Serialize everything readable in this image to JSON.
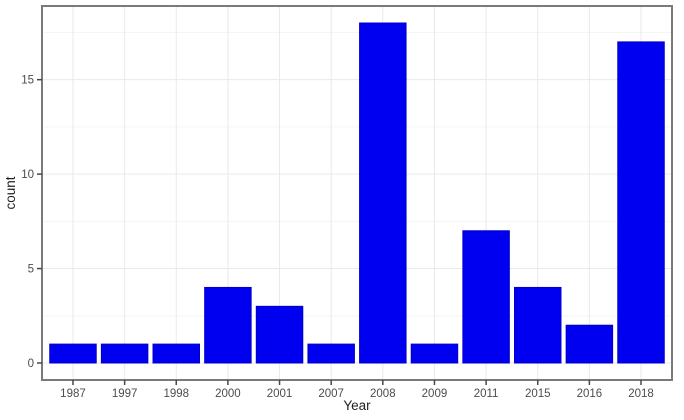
{
  "chart_data": {
    "type": "bar",
    "title": "",
    "xlabel": "Year",
    "ylabel": "count",
    "categories": [
      "1987",
      "1997",
      "1998",
      "2000",
      "2001",
      "2007",
      "2008",
      "2009",
      "2011",
      "2015",
      "2016",
      "2018"
    ],
    "values": [
      1,
      1,
      1,
      4,
      3,
      1,
      18,
      1,
      7,
      4,
      2,
      17
    ],
    "yticks": [
      0,
      5,
      10,
      15
    ],
    "ylim": [
      -0.9,
      18.9
    ],
    "grid": {
      "major": true,
      "minor_horizontal": true
    },
    "legend_position": "none"
  },
  "style": {
    "background": "#ffffff",
    "bar_fill": "#0000f0",
    "bar_stroke": "#0000c8",
    "panel_background": "#ffffff",
    "panel_border": "#7a7a7a",
    "grid_major": "#e9e9e9",
    "grid_minor": "#f5f5f5",
    "tick_mark": "#474747",
    "tick_label": "#4d4d4d",
    "axis_title": "#1f1f1f"
  }
}
